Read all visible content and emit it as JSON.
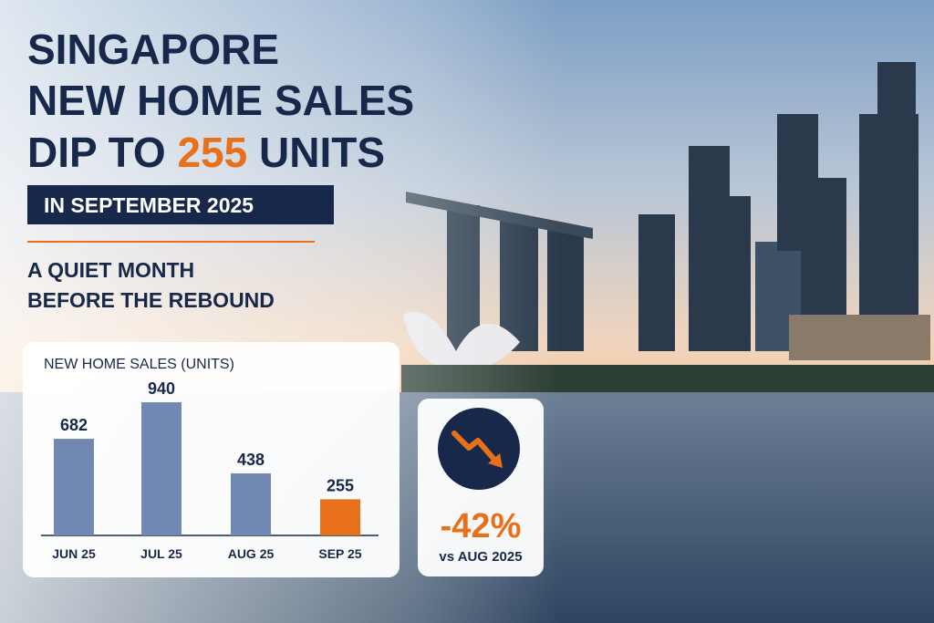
{
  "headline": {
    "lines": [
      "SINGAPORE",
      "NEW HOME SALES"
    ],
    "last_line": {
      "before": "DIP TO ",
      "highlight": "255",
      "after": " UNITS"
    }
  },
  "banner": "IN SEPTEMBER 2025",
  "subtitle": [
    "A QUIET MONTH",
    "BEFORE THE REBOUND"
  ],
  "chart_data": {
    "type": "bar",
    "title": "NEW HOME SALES (UNITS)",
    "categories": [
      "JUN 25",
      "JUL 25",
      "AUG 25",
      "SEP 25"
    ],
    "values": [
      682,
      940,
      438,
      255
    ],
    "colors": [
      "#7088b2",
      "#7088b2",
      "#7088b2",
      "#e8701b"
    ]
  },
  "stat": {
    "value": "-42%",
    "caption": "vs AUG 2025"
  }
}
